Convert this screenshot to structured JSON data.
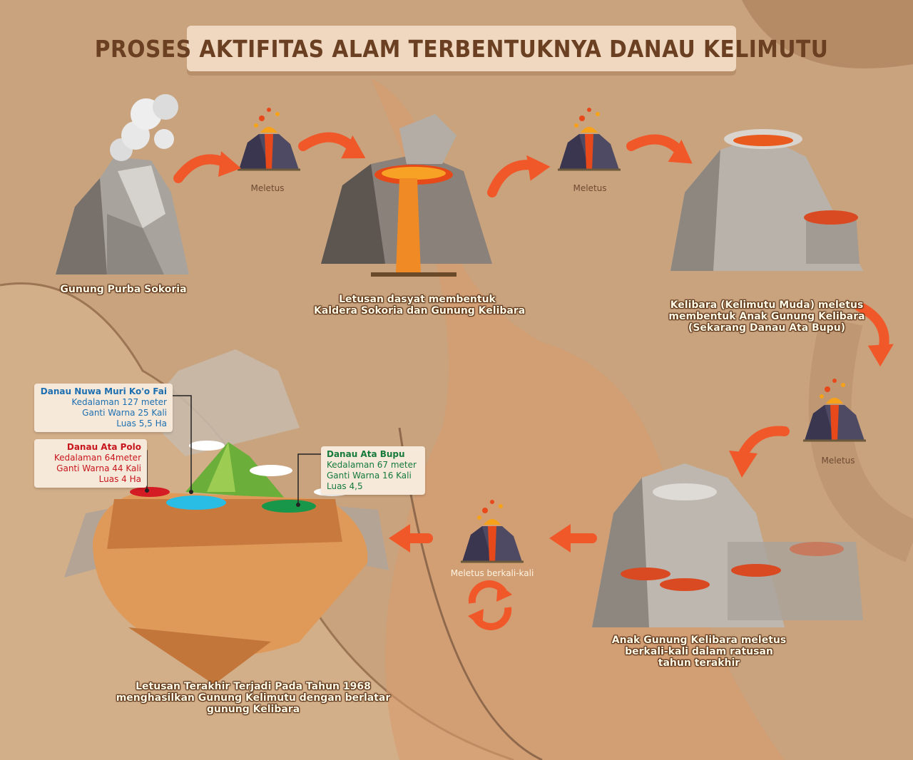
{
  "title": "PROSES AKTIFITAS ALAM TERBENTUKNYA DANAU KELIMUTU",
  "stages": {
    "gunung_purba": "Gunung Purba Sokoria",
    "meletus_1": "Meletus",
    "kaldera_line1": "Letusan dasyat membentuk",
    "kaldera_line2": "Kaldera Sokoria dan Gunung Kelibara",
    "meletus_2": "Meletus",
    "kelibara_line1": "Kelibara (Kelimutu Muda) meletus",
    "kelibara_line2": "membentuk Anak Gunung Kelibara",
    "kelibara_line3": "(Sekarang Danau Ata Bupu)",
    "meletus_3": "Meletus",
    "anak_line1": "Anak Gunung Kelibara meletus",
    "anak_line2": "berkali-kali dalam ratusan",
    "anak_line3": "tahun terakhir",
    "meletus_berkali": "Meletus berkali-kali",
    "akhir_line1": "Letusan Terakhir Terjadi Pada Tahun 1968",
    "akhir_line2": "menghasilkan Gunung Kelimutu dengan berlatar",
    "akhir_line3": "gunung Kelibara"
  },
  "lakes": {
    "nuwa": {
      "name": "Danau Nuwa Muri Ko'o Fai",
      "depth": "Kedalaman 127 meter",
      "colors": "Ganti Warna 25 Kali",
      "area": "Luas 5,5 Ha",
      "color": "#1d6fb0"
    },
    "polo": {
      "name": "Danau Ata Polo",
      "depth": "Kedalaman 64meter",
      "colors": "Ganti Warna 44 Kali",
      "area": "Luas 4 Ha",
      "color": "#c8161d"
    },
    "bupu": {
      "name": "Danau Ata Bupu",
      "depth": "Kedalaman 67 meter",
      "colors": "Ganti Warna 16 Kali",
      "area": "Luas 4,5",
      "color": "#157a3a"
    }
  }
}
